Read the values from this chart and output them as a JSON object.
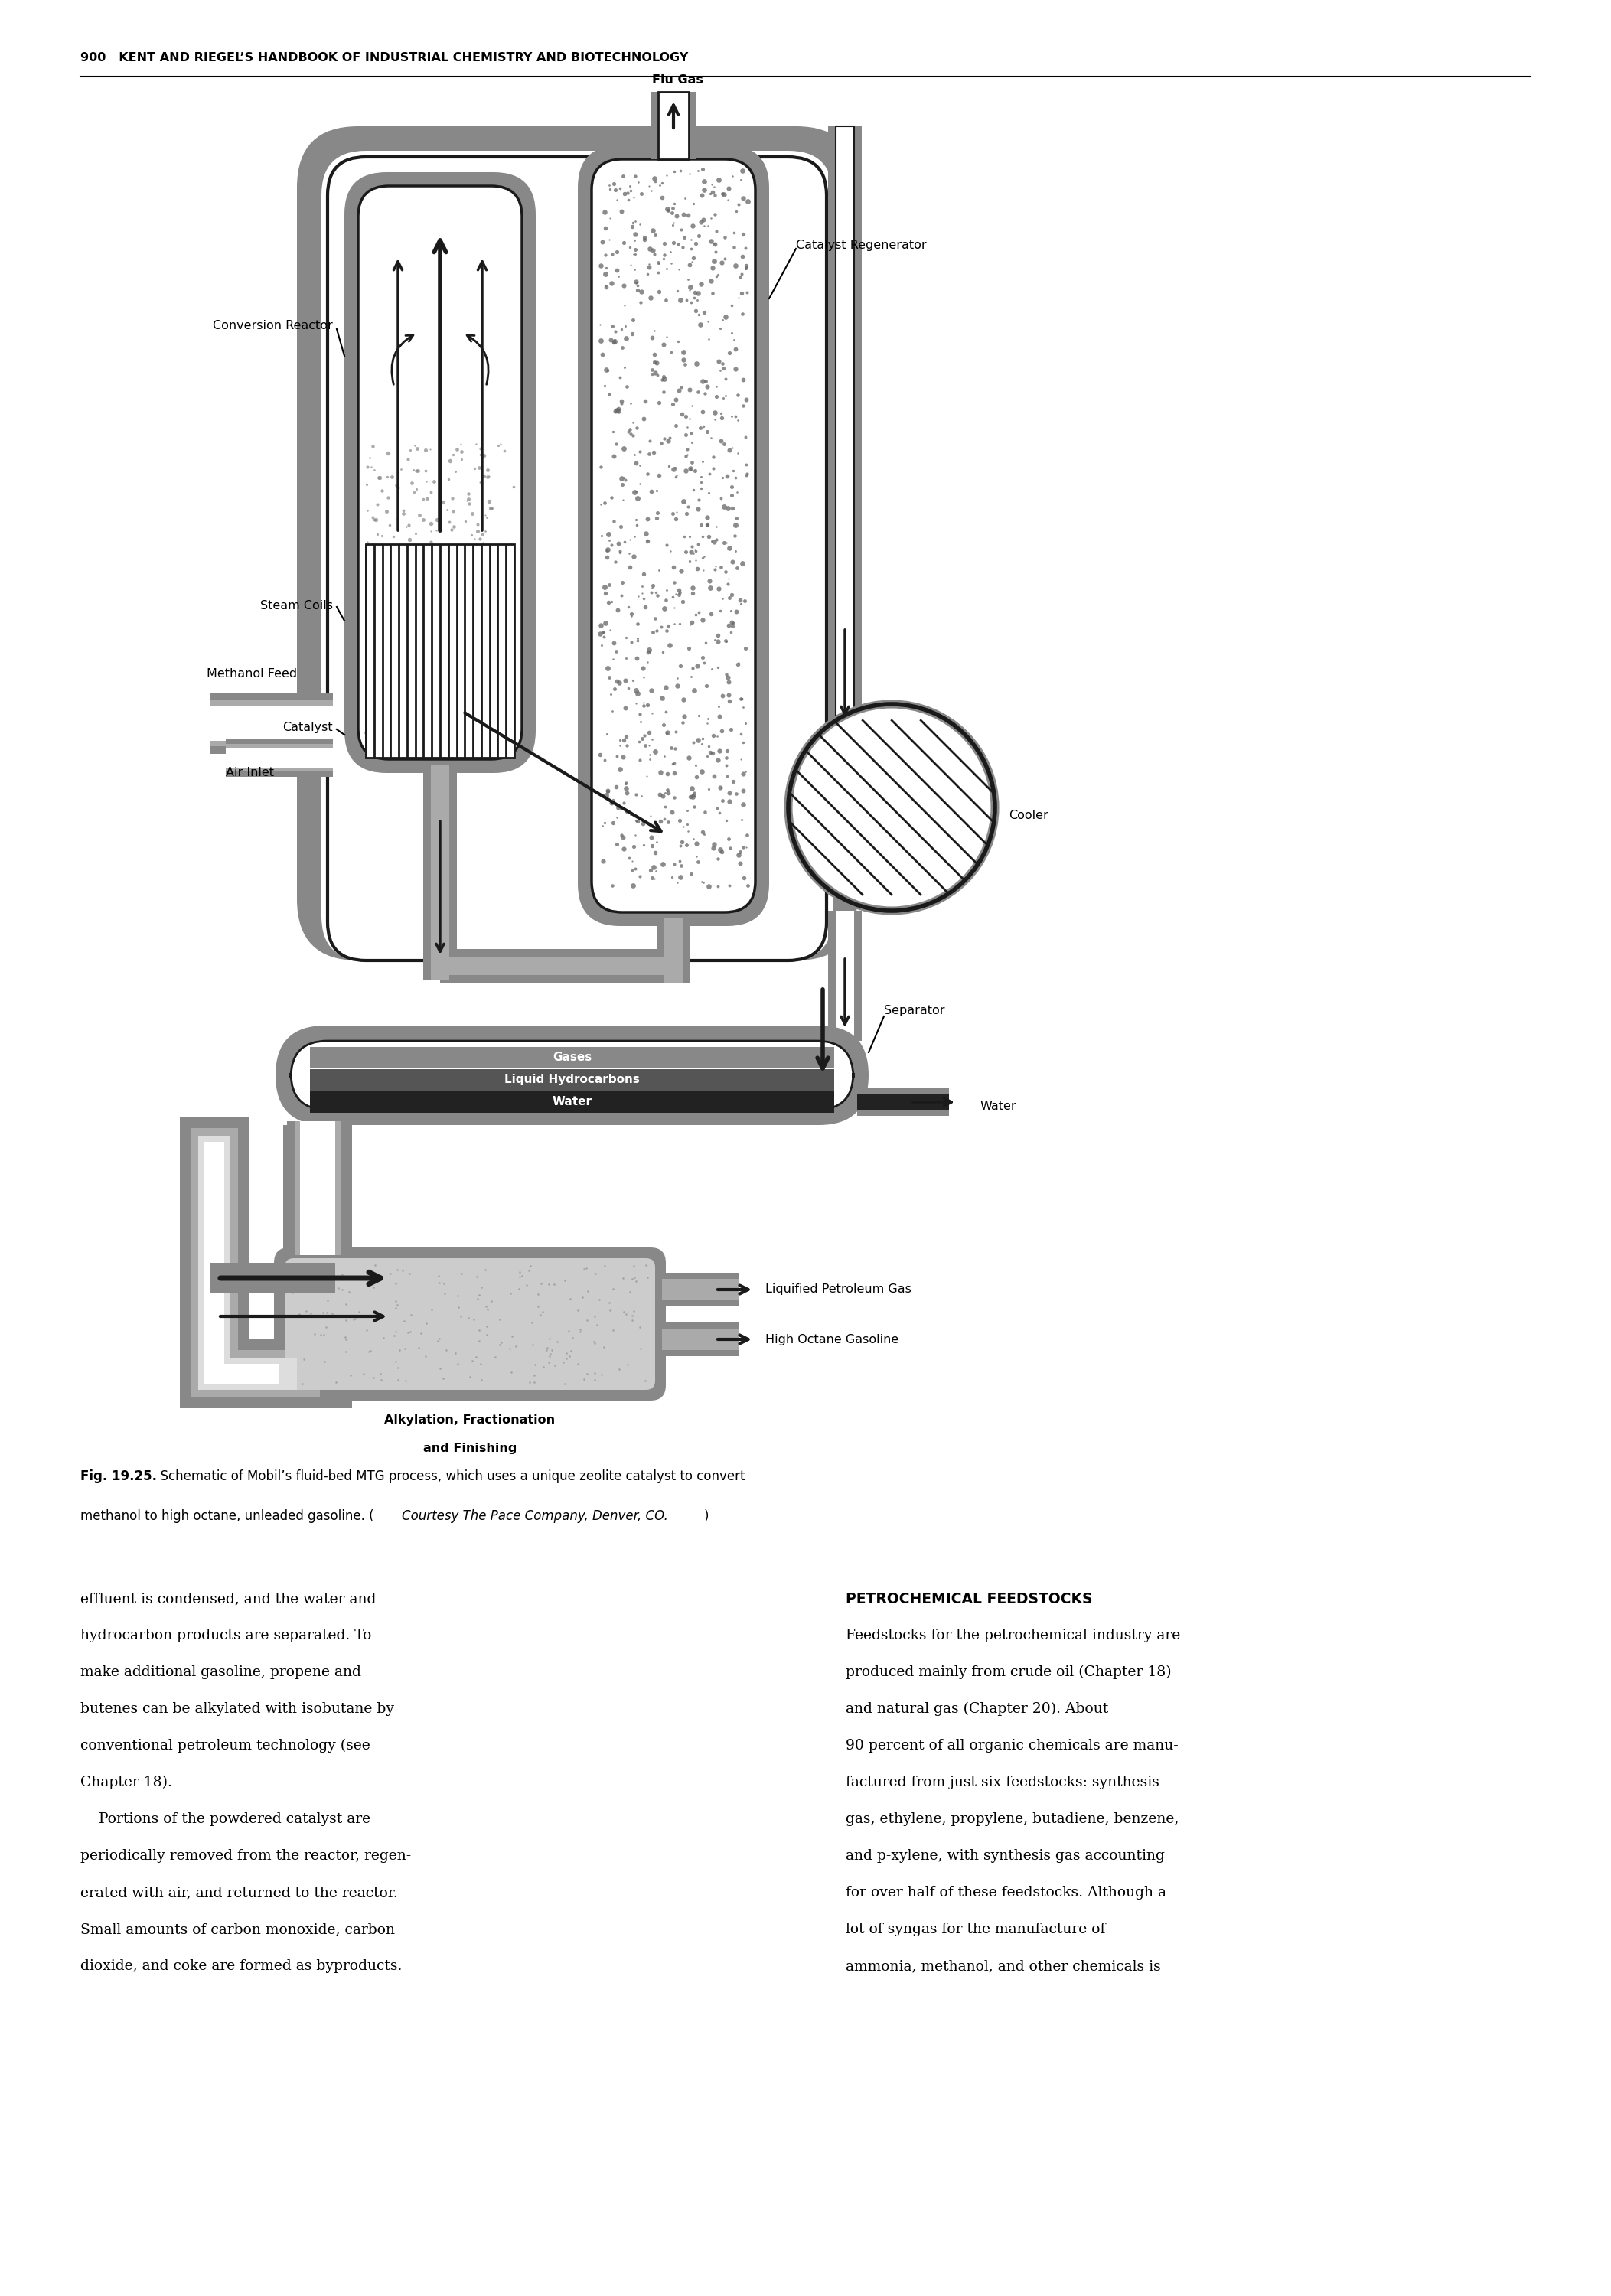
{
  "page_header": "900   KENT AND RIEGEL’S HANDBOOK OF INDUSTRIAL CHEMISTRY AND BIOTECHNOLOGY",
  "fig_num": "Fig. 19.25.",
  "fig_cap1": "  Schematic of Mobil’s fluid-bed MTG process, which uses a unique zeolite catalyst to convert",
  "fig_cap2a": "methanol to high octane, unleaded gasoline. (",
  "fig_cap2b": "Courtesy The Pace Company, Denver, CO.",
  "fig_cap2c": ")",
  "label_flugas": "Flu Gas",
  "label_cat_regen": "Catalyst Regenerator",
  "label_conv_reactor": "Conversion Reactor",
  "label_steam_coils": "Steam Coils",
  "label_catalyst": "Catalyst",
  "label_methanol": "Methanol Feed",
  "label_air": "Air Inlet",
  "label_cooler": "Cooler",
  "label_separator": "Separator",
  "label_gases": "Gases",
  "label_liqhc": "Liquid Hydrocarbons",
  "label_water_in": "Water",
  "label_water_out": "Water",
  "label_lpg": "Liquified Petroleum Gas",
  "label_hog": "High Octane Gasoline",
  "label_alkyl1": "Alkylation, Fractionation",
  "label_alkyl2": "and Finishing",
  "left_col": [
    "effluent is condensed, and the water and",
    "hydrocarbon products are separated. To",
    "make additional gasoline, propene and",
    "butenes can be alkylated with isobutane by",
    "conventional petroleum technology (see",
    "Chapter 18).",
    "    Portions of the powdered catalyst are",
    "periodically removed from the reactor, regen-",
    "erated with air, and returned to the reactor.",
    "Small amounts of carbon monoxide, carbon",
    "dioxide, and coke are formed as byproducts."
  ],
  "right_header": "PETROCHEMICAL FEEDSTOCKS",
  "right_col": [
    "Feedstocks for the petrochemical industry are",
    "produced mainly from crude oil (Chapter 18)",
    "and natural gas (Chapter 20). About",
    "90 percent of all organic chemicals are manu-",
    "factured from just six feedstocks: synthesis",
    "gas, ethylene, propylene, butadiene, benzene,",
    "and p-xylene, with synthesis gas accounting",
    "for over half of these feedstocks. Although a",
    "lot of syngas for the manufacture of",
    "ammonia, methanol, and other chemicals is"
  ],
  "bg": "#ffffff"
}
